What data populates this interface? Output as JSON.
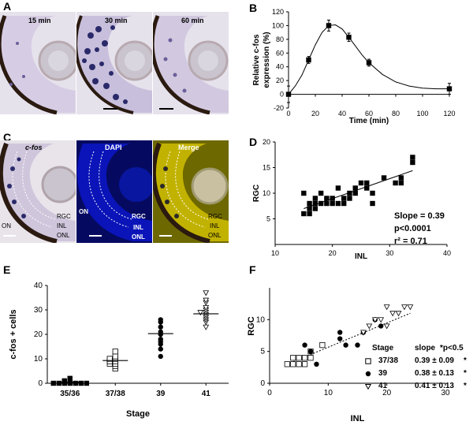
{
  "panels": {
    "A": {
      "letter": "A",
      "images": [
        {
          "label": "15 min"
        },
        {
          "label": "30 min"
        },
        {
          "label": "60 min"
        }
      ]
    },
    "B": {
      "letter": "B"
    },
    "C": {
      "letter": "C",
      "images": [
        {
          "title": "c-fos",
          "labels": [
            "RGC",
            "INL",
            "ONL",
            "ON"
          ]
        },
        {
          "title": "DAPI",
          "labels": [
            "ON",
            "RGC",
            "INL",
            "ONL"
          ]
        },
        {
          "title": "Merge",
          "labels": [
            "RGC",
            "INL",
            "ONL"
          ]
        }
      ]
    },
    "D": {
      "letter": "D",
      "stats": {
        "slope": "Slope = 0.39",
        "p": "p<0.0001",
        "r2": "r² = 0.71"
      }
    },
    "E": {
      "letter": "E"
    },
    "F": {
      "letter": "F",
      "legend_header": {
        "stage": "Stage",
        "slope": "slope",
        "p": "*p<0.5"
      },
      "legend_rows": [
        {
          "stage": "37/38",
          "slope": "0.39 ± 0.09",
          "star": "*"
        },
        {
          "stage": "39",
          "slope": "0.38 ± 0.13",
          "star": "*"
        },
        {
          "stage": "41",
          "slope": "0.41 ± 0.13",
          "star": "*"
        }
      ]
    }
  },
  "colors": {
    "stain_dark": "#2a2a6a",
    "tissue": "#d8d2e4",
    "dapi": "#0a14b8",
    "merge": "#c2b200",
    "pigment": "#2a1a10",
    "line": "#000000"
  },
  "chart_data": [
    {
      "id": "B",
      "type": "line",
      "title": "",
      "xlabel": "Time (min)",
      "ylabel": "Relative c-fos expression (%)",
      "xlim": [
        0,
        120
      ],
      "ylim": [
        -20,
        120
      ],
      "xticks": [
        0,
        20,
        40,
        60,
        80,
        100,
        120
      ],
      "yticks": [
        -20,
        0,
        20,
        40,
        60,
        80,
        100,
        120
      ],
      "points": [
        {
          "x": 0,
          "y": 0,
          "err": 12
        },
        {
          "x": 15,
          "y": 50,
          "err": 5
        },
        {
          "x": 30,
          "y": 100,
          "err": 8
        },
        {
          "x": 45,
          "y": 83,
          "err": 6
        },
        {
          "x": 60,
          "y": 46,
          "err": 5
        },
        {
          "x": 120,
          "y": 8,
          "err": 8
        }
      ],
      "curve": [
        {
          "x": 0,
          "y": 0
        },
        {
          "x": 5,
          "y": 12
        },
        {
          "x": 10,
          "y": 28
        },
        {
          "x": 15,
          "y": 50
        },
        {
          "x": 20,
          "y": 72
        },
        {
          "x": 25,
          "y": 90
        },
        {
          "x": 30,
          "y": 100
        },
        {
          "x": 35,
          "y": 101
        },
        {
          "x": 40,
          "y": 95
        },
        {
          "x": 45,
          "y": 83
        },
        {
          "x": 50,
          "y": 70
        },
        {
          "x": 55,
          "y": 57
        },
        {
          "x": 60,
          "y": 46
        },
        {
          "x": 70,
          "y": 29
        },
        {
          "x": 80,
          "y": 18
        },
        {
          "x": 90,
          "y": 12
        },
        {
          "x": 100,
          "y": 9
        },
        {
          "x": 110,
          "y": 8
        },
        {
          "x": 120,
          "y": 8
        }
      ]
    },
    {
      "id": "D",
      "type": "scatter",
      "title": "",
      "xlabel": "INL",
      "ylabel": "RGC",
      "xlim": [
        10,
        40
      ],
      "ylim": [
        0,
        20
      ],
      "xticks": [
        10,
        20,
        30,
        40
      ],
      "yticks": [
        5,
        10,
        15,
        20
      ],
      "points": [
        {
          "x": 15,
          "y": 6
        },
        {
          "x": 15,
          "y": 10
        },
        {
          "x": 16,
          "y": 6
        },
        {
          "x": 16,
          "y": 7
        },
        {
          "x": 16,
          "y": 8
        },
        {
          "x": 17,
          "y": 8
        },
        {
          "x": 17,
          "y": 9
        },
        {
          "x": 17,
          "y": 7
        },
        {
          "x": 18,
          "y": 8
        },
        {
          "x": 18,
          "y": 10
        },
        {
          "x": 19,
          "y": 8
        },
        {
          "x": 19,
          "y": 9
        },
        {
          "x": 20,
          "y": 8
        },
        {
          "x": 20,
          "y": 9
        },
        {
          "x": 21,
          "y": 8
        },
        {
          "x": 21,
          "y": 11
        },
        {
          "x": 22,
          "y": 8
        },
        {
          "x": 22,
          "y": 9
        },
        {
          "x": 23,
          "y": 9
        },
        {
          "x": 23,
          "y": 10
        },
        {
          "x": 24,
          "y": 10
        },
        {
          "x": 24,
          "y": 11
        },
        {
          "x": 25,
          "y": 12
        },
        {
          "x": 26,
          "y": 11
        },
        {
          "x": 26,
          "y": 12
        },
        {
          "x": 27,
          "y": 10
        },
        {
          "x": 27,
          "y": 8
        },
        {
          "x": 29,
          "y": 13
        },
        {
          "x": 31,
          "y": 12
        },
        {
          "x": 32,
          "y": 13
        },
        {
          "x": 32,
          "y": 12
        },
        {
          "x": 34,
          "y": 16
        },
        {
          "x": 34,
          "y": 17
        }
      ],
      "fit": [
        {
          "x": 15,
          "y": 7.0
        },
        {
          "x": 34,
          "y": 14.4
        }
      ]
    },
    {
      "id": "E",
      "type": "scatter",
      "title": "",
      "xlabel": "Stage",
      "ylabel": "c-fos + cells",
      "ylim": [
        0,
        40
      ],
      "yticks": [
        0,
        10,
        20,
        30,
        40
      ],
      "categories": [
        "35/36",
        "37/38",
        "39",
        "41"
      ],
      "series": [
        {
          "category": "35/36",
          "marker": "filled-square",
          "mean": 0.4,
          "values": [
            0,
            0,
            0,
            0,
            0,
            0,
            0,
            1,
            1,
            2
          ]
        },
        {
          "category": "37/38",
          "marker": "open-square",
          "mean": 9.3,
          "values": [
            6,
            7,
            8,
            8,
            9,
            9,
            10,
            10,
            11,
            13
          ]
        },
        {
          "category": "39",
          "marker": "filled-circle",
          "mean": 20.3,
          "values": [
            11,
            14,
            16,
            17,
            18,
            20,
            21,
            23,
            25,
            26
          ]
        },
        {
          "category": "41",
          "marker": "open-triangle",
          "mean": 28.4,
          "values": [
            23,
            25,
            26,
            27,
            28,
            29,
            29,
            30,
            31,
            33,
            34,
            37
          ]
        }
      ]
    },
    {
      "id": "F",
      "type": "scatter",
      "title": "",
      "xlabel": "INL",
      "ylabel": "RGC",
      "xlim": [
        0,
        30
      ],
      "ylim": [
        0,
        15
      ],
      "xticks": [
        0,
        10,
        20,
        30
      ],
      "yticks": [
        0,
        5,
        10
      ],
      "series": [
        {
          "name": "37/38",
          "marker": "open-square",
          "points": [
            {
              "x": 3,
              "y": 3
            },
            {
              "x": 4,
              "y": 3
            },
            {
              "x": 4,
              "y": 4
            },
            {
              "x": 5,
              "y": 3
            },
            {
              "x": 5,
              "y": 4
            },
            {
              "x": 6,
              "y": 4
            },
            {
              "x": 6,
              "y": 3
            },
            {
              "x": 7,
              "y": 5
            },
            {
              "x": 7,
              "y": 4
            },
            {
              "x": 9,
              "y": 6
            }
          ]
        },
        {
          "name": "39",
          "marker": "filled-circle",
          "points": [
            {
              "x": 6,
              "y": 6
            },
            {
              "x": 7,
              "y": 5
            },
            {
              "x": 8,
              "y": 3
            },
            {
              "x": 12,
              "y": 8
            },
            {
              "x": 12,
              "y": 7
            },
            {
              "x": 13,
              "y": 6
            },
            {
              "x": 15,
              "y": 6
            },
            {
              "x": 16,
              "y": 8
            },
            {
              "x": 18,
              "y": 10
            },
            {
              "x": 19,
              "y": 9
            }
          ]
        },
        {
          "name": "41",
          "marker": "open-triangle",
          "points": [
            {
              "x": 16,
              "y": 8
            },
            {
              "x": 17,
              "y": 9
            },
            {
              "x": 18,
              "y": 10
            },
            {
              "x": 19,
              "y": 10
            },
            {
              "x": 20,
              "y": 9
            },
            {
              "x": 21,
              "y": 11
            },
            {
              "x": 23,
              "y": 12
            },
            {
              "x": 24,
              "y": 12
            },
            {
              "x": 22,
              "y": 11
            },
            {
              "x": 20,
              "y": 12
            }
          ]
        }
      ],
      "fit": [
        {
          "x": 3,
          "y": 3
        },
        {
          "x": 24,
          "y": 11
        }
      ]
    }
  ]
}
